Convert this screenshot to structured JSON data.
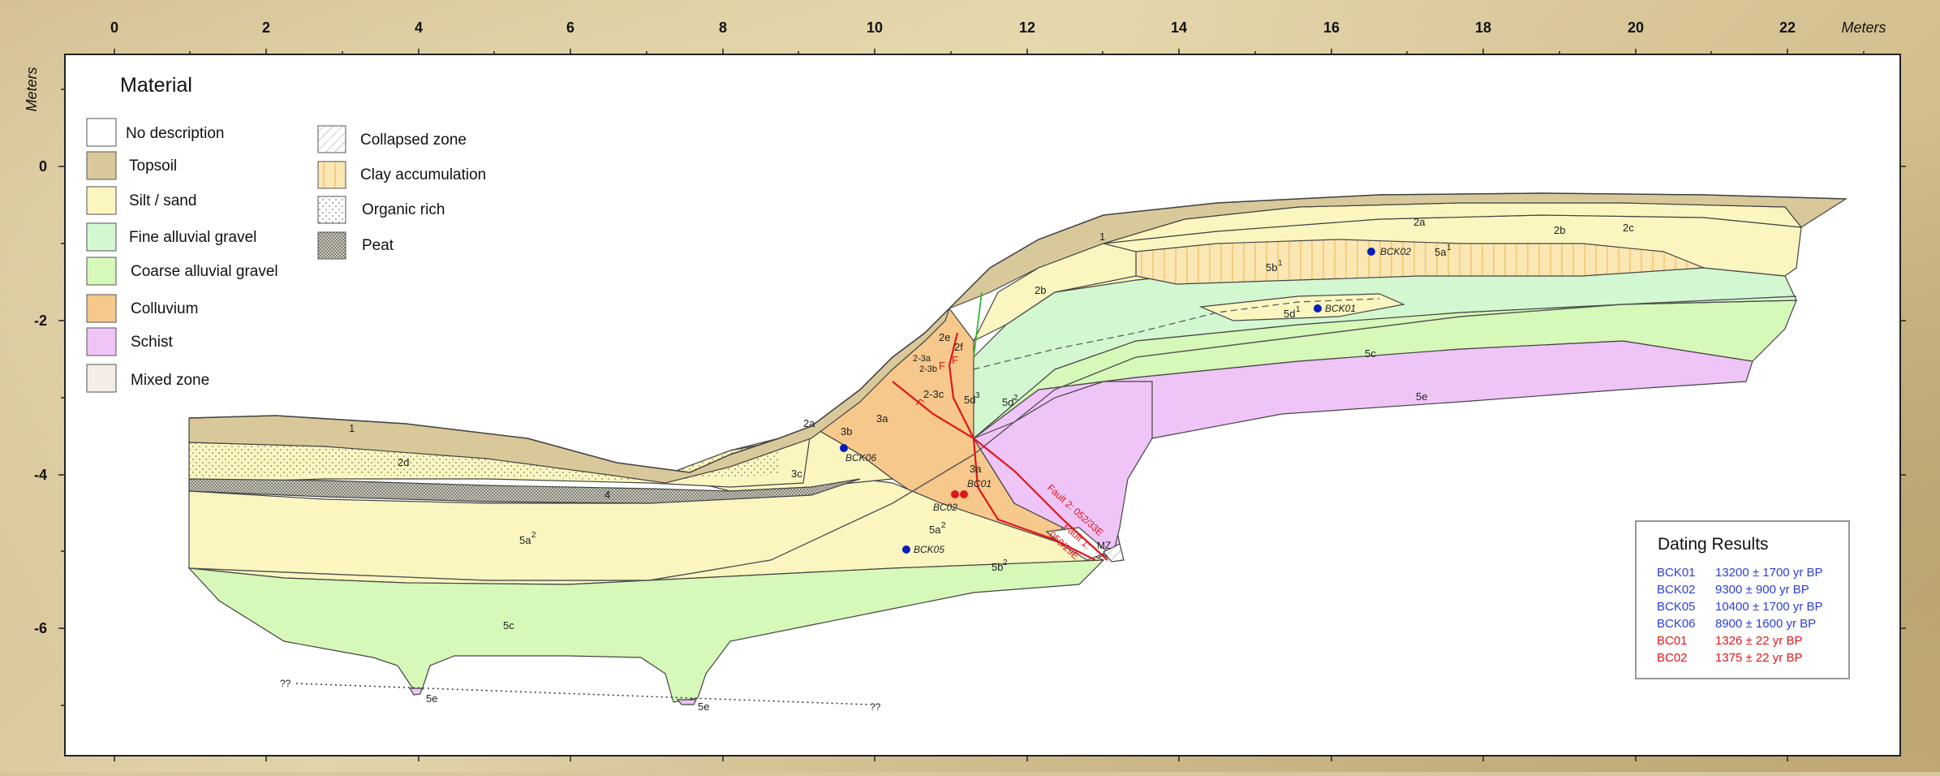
{
  "axis": {
    "top_unit": "Meters",
    "left_unit": "Meters",
    "x_ticks": [
      "0",
      "2",
      "4",
      "6",
      "8",
      "10",
      "12",
      "14",
      "16",
      "18",
      "20",
      "22"
    ],
    "y_ticks": [
      "0",
      "-2",
      "-4",
      "-6"
    ]
  },
  "legend": {
    "title": "Material",
    "items": [
      {
        "label": "No description",
        "color": "#ffffff"
      },
      {
        "label": "Topsoil",
        "color": "#d9c99a"
      },
      {
        "label": "Silt / sand",
        "color": "#fbf6c0"
      },
      {
        "label": "Fine alluvial gravel",
        "color": "#d3f7d1"
      },
      {
        "label": "Coarse alluvial gravel",
        "color": "#d6f8b9"
      },
      {
        "label": "Colluvium",
        "color": "#f6c88b"
      },
      {
        "label": "Schist",
        "color": "#efc4f7"
      },
      {
        "label": "Mixed zone",
        "color": "#f4ece6"
      }
    ],
    "patterns": [
      {
        "label": "Collapsed zone",
        "icon": "hatch-icon"
      },
      {
        "label": "Clay accumulation",
        "icon": "vertical-lines-icon"
      },
      {
        "label": "Organic rich",
        "icon": "sparse-dots-icon"
      },
      {
        "label": "Peat",
        "icon": "dense-dots-icon"
      }
    ]
  },
  "units": {
    "u1a": "1",
    "u1b": "1",
    "u2a": "2a",
    "u2b_right": "2b",
    "u2c": "2c",
    "u2b_mid": "2b",
    "u2d": "2d",
    "u4": "4",
    "u5a2": "5a",
    "u5a2_sup": "2",
    "u5c_left": "5c",
    "u5e_l1": "5e",
    "u5e_l2": "5e",
    "u3c": "3c",
    "u3a_top": "3a",
    "u3a_bot": "3a",
    "u3b": "3b",
    "u2a_small": "2a",
    "u5a2_mid": "5a",
    "u5a2_mid_sup": "2",
    "u5b2": "5b",
    "u5b2_sup": "2",
    "u2e": "2e",
    "u2f": "2f",
    "u23a": "2-3a",
    "u23b": "2-3b",
    "u23c": "2-3c",
    "u5d3": "5d",
    "u5d3_sup": "3",
    "u5d2": "5d",
    "u5d2_sup": "2",
    "u5b1": "5b",
    "u5b1_sup": "1",
    "u5a1": "5a",
    "u5a1_sup": "1",
    "u5d1": "5d",
    "u5d1_sup": "1",
    "u5c_right": "5c",
    "u5e_right": "5e",
    "fault_f": "F",
    "fault_f2": "F",
    "fault_f3": "F",
    "fault2": "Fault 2: 052/33E",
    "fault1a": "Fault 1:",
    "fault1b": "050/29E",
    "mz": "MZ",
    "q1": "??",
    "q2": "??"
  },
  "samples": [
    {
      "id": "BCK01",
      "color": "#0a1db8"
    },
    {
      "id": "BCK02",
      "color": "#0a1db8"
    },
    {
      "id": "BCK05",
      "color": "#0a1db8"
    },
    {
      "id": "BCK06",
      "color": "#0a1db8"
    },
    {
      "id": "BC01",
      "color": "#e0161a"
    },
    {
      "id": "BC02",
      "color": "#e0161a"
    }
  ],
  "dating": {
    "title": "Dating Results",
    "rows": [
      {
        "id": "BCK01",
        "age": "13200 ± 1700 yr BP",
        "color": "#2b3fd6"
      },
      {
        "id": "BCK02",
        "age": "9300 ± 900 yr BP",
        "color": "#2b3fd6"
      },
      {
        "id": "BCK05",
        "age": "10400 ± 1700 yr BP",
        "color": "#2b3fd6"
      },
      {
        "id": "BCK06",
        "age": "8900 ± 1600 yr BP",
        "color": "#2b3fd6"
      },
      {
        "id": "BC01",
        "age": "1326 ± 22 yr BP",
        "color": "#e0161a"
      },
      {
        "id": "BC02",
        "age": "1375 ± 22 yr BP",
        "color": "#e0161a"
      }
    ]
  }
}
